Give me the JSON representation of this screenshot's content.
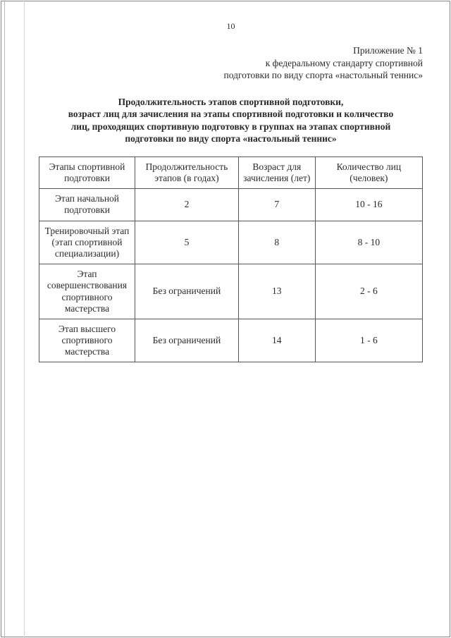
{
  "page_number": "10",
  "annex": {
    "line1": "Приложение № 1",
    "line2": "к федеральному стандарту спортивной",
    "line3": "подготовки по виду спорта «настольный теннис»"
  },
  "title": {
    "line1": "Продолжительность этапов спортивной подготовки,",
    "line2": "возраст лиц для зачисления на этапы спортивной подготовки и количество",
    "line3": "лиц, проходящих спортивную подготовку в группах на этапах спортивной",
    "line4": "подготовки по виду спорта «настольный теннис»"
  },
  "table": {
    "headers": {
      "c1": "Этапы спортивной подготовки",
      "c2": "Продолжительность этапов (в годах)",
      "c3": "Возраст для зачисления (лет)",
      "c4": "Количество лиц (человек)"
    },
    "rows": [
      {
        "c1": "Этап начальной подготовки",
        "c2": "2",
        "c3": "7",
        "c4": "10 - 16"
      },
      {
        "c1": "Тренировочный этап (этап спортивной специализации)",
        "c2": "5",
        "c3": "8",
        "c4": "8 - 10"
      },
      {
        "c1": "Этап совершенствования спортивного мастерства",
        "c2": "Без ограничений",
        "c3": "13",
        "c4": "2 - 6"
      },
      {
        "c1": "Этап высшего спортивного мастерства",
        "c2": "Без ограничений",
        "c3": "14",
        "c4": "1 - 6"
      }
    ]
  },
  "styling": {
    "text_color": "#2a2a2a",
    "bg_color": "#ffffff",
    "border_color": "#555555",
    "font_family": "Times New Roman",
    "body_fontsize": 14,
    "annex_fontsize": 13.5,
    "title_fontsize": 13.5,
    "table_fontsize": 13.5,
    "page_number_fontsize": 12,
    "col_widths_pct": [
      25,
      27,
      20,
      28
    ]
  }
}
